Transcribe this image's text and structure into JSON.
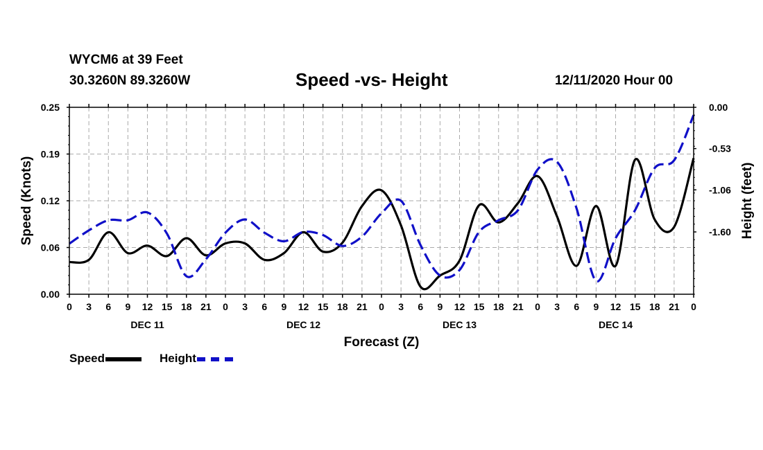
{
  "header": {
    "station": "WYCM6 at 39 Feet",
    "coords": "30.3260N 89.3260W",
    "title": "Speed -vs- Height",
    "timestamp": "12/11/2020 Hour 00"
  },
  "legend": {
    "speed": "Speed",
    "height": "Height"
  },
  "chart_data": {
    "type": "line",
    "title": "Speed -vs- Height",
    "xlabel": "Forecast (Z)",
    "ylabel": "Speed (Knots)",
    "y2label": "Height (feet)",
    "x_range_hours": [
      0,
      96
    ],
    "x_ticks": [
      "0",
      "3",
      "6",
      "9",
      "12",
      "15",
      "18",
      "21",
      "0",
      "3",
      "6",
      "9",
      "12",
      "15",
      "18",
      "21",
      "0",
      "3",
      "6",
      "9",
      "12",
      "15",
      "18",
      "21",
      "0",
      "3",
      "6",
      "9",
      "12",
      "15",
      "18",
      "21",
      "0"
    ],
    "day_labels": [
      {
        "label": "DEC 11",
        "hour": 12
      },
      {
        "label": "DEC 12",
        "hour": 36
      },
      {
        "label": "DEC 13",
        "hour": 60
      },
      {
        "label": "DEC 14",
        "hour": 84
      }
    ],
    "ylim": [
      0,
      0.25
    ],
    "y_ticks": [
      "0.00",
      "0.06",
      "0.12",
      "0.19",
      "0.25"
    ],
    "y2lim": [
      -2.4,
      0
    ],
    "y2_ticks": [
      "-1.60",
      "-1.06",
      "-0.53",
      "0.00"
    ],
    "grid": true,
    "series": [
      {
        "name": "Speed",
        "color": "#000000",
        "axis": "left",
        "x": [
          0,
          3,
          6,
          9,
          12,
          15,
          18,
          21,
          24,
          27,
          30,
          33,
          36,
          39,
          42,
          45,
          48,
          51,
          54,
          57,
          60,
          63,
          66,
          69,
          72,
          75,
          78,
          81,
          84,
          87,
          90,
          93,
          96
        ],
        "values": [
          0.043,
          0.046,
          0.083,
          0.055,
          0.065,
          0.051,
          0.075,
          0.052,
          0.068,
          0.068,
          0.046,
          0.055,
          0.083,
          0.057,
          0.069,
          0.118,
          0.139,
          0.092,
          0.01,
          0.025,
          0.045,
          0.119,
          0.096,
          0.122,
          0.158,
          0.104,
          0.038,
          0.118,
          0.038,
          0.18,
          0.1,
          0.09,
          0.182
        ]
      },
      {
        "name": "Height",
        "color": "#1010c8",
        "axis": "right",
        "x": [
          0,
          3,
          6,
          9,
          12,
          15,
          18,
          21,
          24,
          27,
          30,
          33,
          36,
          39,
          42,
          45,
          48,
          51,
          54,
          57,
          60,
          63,
          66,
          69,
          72,
          75,
          78,
          81,
          84,
          87,
          90,
          93,
          96
        ],
        "values": [
          -1.75,
          -1.58,
          -1.45,
          -1.45,
          -1.35,
          -1.62,
          -2.17,
          -1.95,
          -1.61,
          -1.44,
          -1.61,
          -1.72,
          -1.6,
          -1.64,
          -1.78,
          -1.66,
          -1.36,
          -1.2,
          -1.77,
          -2.16,
          -2.09,
          -1.6,
          -1.45,
          -1.32,
          -0.8,
          -0.7,
          -1.3,
          -2.23,
          -1.68,
          -1.32,
          -0.78,
          -0.68,
          -0.1
        ]
      }
    ]
  }
}
